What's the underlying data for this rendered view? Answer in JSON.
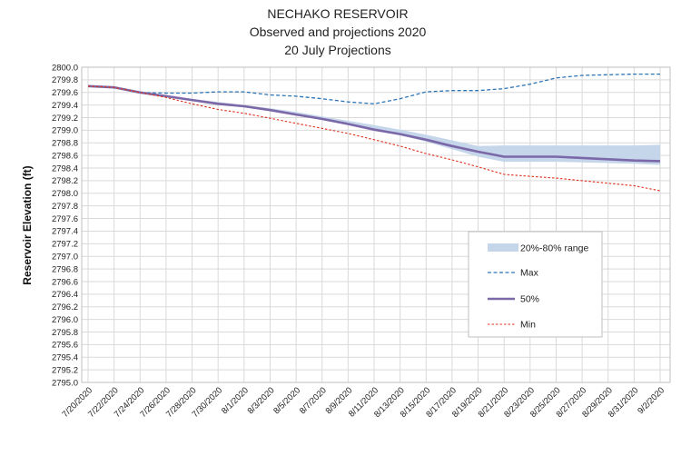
{
  "chart_data": {
    "type": "line",
    "title": [
      "NECHAKO RESERVOIR",
      "Observed and projections 2020",
      "20 July Projections"
    ],
    "xlabel": "",
    "ylabel": "Reservoir Elevation (ft)",
    "ylim": [
      2795.0,
      2800.0
    ],
    "ytick_step": 0.2,
    "xticks": [
      "7/20/2020",
      "7/22/2020",
      "7/24/2020",
      "7/26/2020",
      "7/28/2020",
      "7/30/2020",
      "8/1/2020",
      "8/3/2020",
      "8/5/2020",
      "8/7/2020",
      "8/9/2020",
      "8/11/2020",
      "8/13/2020",
      "8/15/2020",
      "8/17/2020",
      "8/19/2020",
      "8/21/2020",
      "8/23/2020",
      "8/25/2020",
      "8/27/2020",
      "8/29/2020",
      "8/31/2020",
      "9/2/2020"
    ],
    "x": [
      "7/20/2020",
      "7/22/2020",
      "7/24/2020",
      "7/26/2020",
      "7/28/2020",
      "7/30/2020",
      "8/1/2020",
      "8/3/2020",
      "8/5/2020",
      "8/7/2020",
      "8/9/2020",
      "8/11/2020",
      "8/13/2020",
      "8/15/2020",
      "8/17/2020",
      "8/19/2020",
      "8/21/2020",
      "8/23/2020",
      "8/25/2020",
      "8/27/2020",
      "8/29/2020",
      "8/31/2020",
      "9/2/2020"
    ],
    "grid": true,
    "legend_position": "right-center",
    "band": {
      "name": "20%-80% range",
      "color": "#c5d5ea",
      "low": [
        2799.7,
        2799.68,
        2799.6,
        2799.53,
        2799.47,
        2799.42,
        2799.37,
        2799.31,
        2799.24,
        2799.16,
        2799.08,
        2799.0,
        2798.92,
        2798.82,
        2798.7,
        2798.58,
        2798.5,
        2798.5,
        2798.5,
        2798.49,
        2798.48,
        2798.47,
        2798.45
      ],
      "high": [
        2799.7,
        2799.68,
        2799.6,
        2799.56,
        2799.5,
        2799.45,
        2799.4,
        2799.35,
        2799.29,
        2799.22,
        2799.15,
        2799.08,
        2799.01,
        2798.93,
        2798.84,
        2798.75,
        2798.76,
        2798.76,
        2798.76,
        2798.76,
        2798.76,
        2798.76,
        2798.77
      ]
    },
    "series": [
      {
        "name": "Max",
        "color": "#2e75b6",
        "style": "dashed",
        "values": [
          2799.7,
          2799.68,
          2799.6,
          2799.59,
          2799.59,
          2799.61,
          2799.61,
          2799.56,
          2799.54,
          2799.5,
          2799.45,
          2799.42,
          2799.5,
          2799.61,
          2799.63,
          2799.63,
          2799.66,
          2799.73,
          2799.83,
          2799.87,
          2799.88,
          2799.89,
          2799.89
        ]
      },
      {
        "name": "50%",
        "color": "#7b68a8",
        "style": "solid",
        "values": [
          2799.7,
          2799.68,
          2799.6,
          2799.54,
          2799.48,
          2799.42,
          2799.38,
          2799.32,
          2799.25,
          2799.18,
          2799.1,
          2799.01,
          2798.94,
          2798.85,
          2798.75,
          2798.66,
          2798.58,
          2798.58,
          2798.58,
          2798.56,
          2798.54,
          2798.52,
          2798.51
        ]
      },
      {
        "name": "Min",
        "color": "#e0301e",
        "style": "dotted",
        "values": [
          2799.7,
          2799.68,
          2799.6,
          2799.52,
          2799.42,
          2799.33,
          2799.27,
          2799.19,
          2799.11,
          2799.03,
          2798.95,
          2798.85,
          2798.75,
          2798.63,
          2798.53,
          2798.42,
          2798.3,
          2798.27,
          2798.24,
          2798.2,
          2798.16,
          2798.12,
          2798.04
        ]
      }
    ]
  }
}
